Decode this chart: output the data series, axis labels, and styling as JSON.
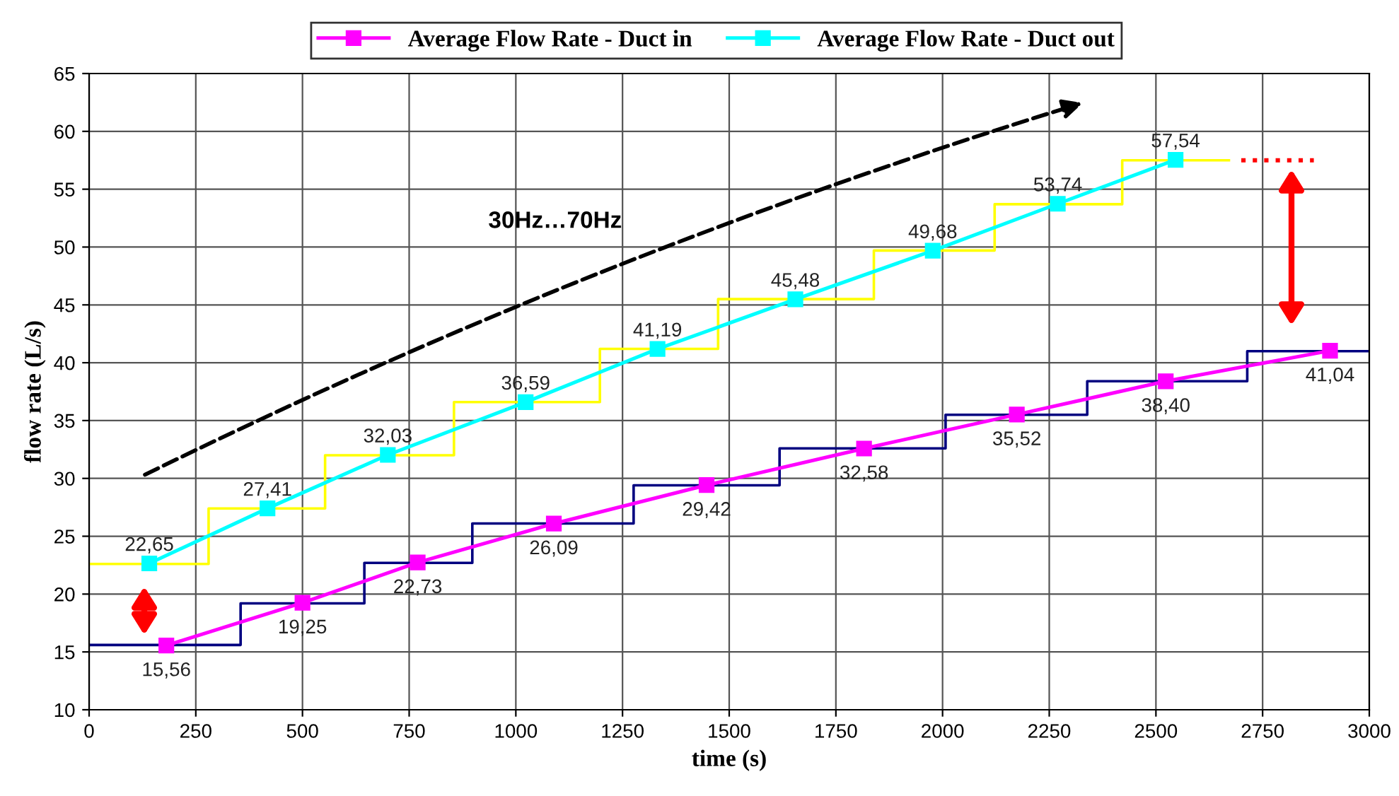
{
  "chart_data": {
    "type": "line",
    "xlabel": "time (s)",
    "ylabel": "flow rate (L/s)",
    "xlim": [
      0,
      3000
    ],
    "xticks": [
      0,
      250,
      500,
      750,
      1000,
      1250,
      1500,
      1750,
      2000,
      2250,
      2500,
      2750,
      3000
    ],
    "ylim": [
      10,
      65
    ],
    "yticks": [
      10,
      15,
      20,
      25,
      30,
      35,
      40,
      45,
      50,
      55,
      60,
      65
    ],
    "grid": true,
    "legend": "top",
    "line_style": "solid",
    "annotations": [
      "30Hz…70Hz"
    ],
    "series": [
      {
        "type": "step",
        "color": "#ffff00",
        "marker": "none",
        "x": [
          0,
          280,
          553,
          855,
          1197,
          1474,
          1839,
          2122,
          2421,
          2671
        ],
        "values": [
          22.6,
          27.4,
          32.0,
          36.6,
          41.2,
          45.5,
          49.7,
          53.7,
          57.5,
          57.5
        ]
      },
      {
        "type": "step",
        "color": "#000080",
        "marker": "none",
        "x": [
          0,
          355,
          645,
          898,
          1276,
          1618,
          2007,
          2339,
          2714,
          3000
        ],
        "values": [
          15.6,
          19.2,
          22.7,
          26.1,
          29.4,
          32.6,
          35.5,
          38.4,
          41.0,
          41.0
        ]
      },
      {
        "name": "Average Flow Rate - Duct in",
        "color": "#ff00ff",
        "marker": "square",
        "x": [
          181,
          500,
          770,
          1089,
          1447,
          1816,
          2174,
          2523,
          2908
        ],
        "values": [
          15.56,
          19.25,
          22.73,
          26.09,
          29.42,
          32.58,
          35.52,
          38.4,
          41.04
        ],
        "value_labels": [
          "15,56",
          "19,25",
          "22,73",
          "26,09",
          "29,42",
          "32,58",
          "35,52",
          "38,40",
          "41,04"
        ]
      },
      {
        "name": "Average Flow Rate - Duct out",
        "color": "#00ffff",
        "marker": "square",
        "x": [
          141,
          418,
          700,
          1023,
          1332,
          1655,
          1977,
          2270,
          2546
        ],
        "values": [
          22.65,
          27.41,
          32.03,
          36.59,
          41.19,
          45.48,
          49.68,
          53.74,
          57.54
        ],
        "value_labels": [
          "22,65",
          "27,41",
          "32,03",
          "36,59",
          "41,19",
          "45,48",
          "49,68",
          "53,74",
          "57,54"
        ]
      },
      {
        "color": "#ff0000",
        "marker": "none",
        "line_style": "dotted",
        "x": [
          2700,
          2870
        ],
        "values": [
          57.5,
          57.5
        ]
      }
    ]
  }
}
